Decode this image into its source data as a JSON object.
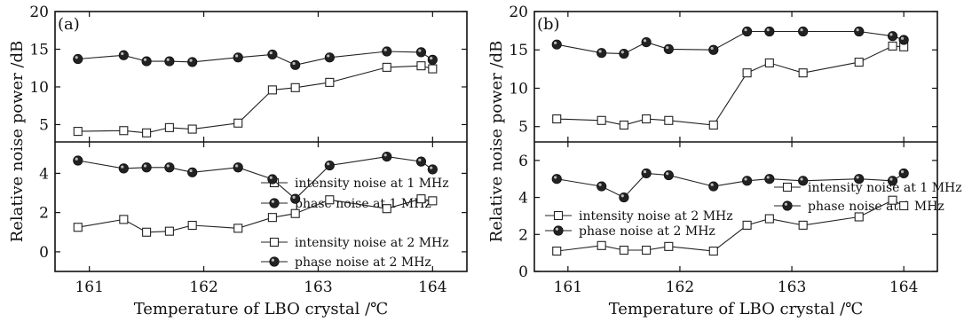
{
  "chart_data": [
    {
      "type": "line",
      "panel_label": "(a)",
      "xlabel": "Temperature of LBO crystal /℃",
      "ylabel": "Relative noise power /dB",
      "xlim": [
        160.7,
        164.3
      ],
      "xticks": [
        161,
        162,
        163,
        164
      ],
      "subplots": [
        {
          "position": "top",
          "ylim": [
            2.7,
            20
          ],
          "yticks": [
            5,
            10,
            15,
            20
          ],
          "legend_location": "center-right",
          "series": [
            {
              "name": "intensity noise at 1 MHz",
              "marker": "open-square",
              "x": [
                160.9,
                161.3,
                161.5,
                161.7,
                161.9,
                162.3,
                162.6,
                162.8,
                163.1,
                163.6,
                163.9,
                164.0
              ],
              "y": [
                4.1,
                4.2,
                3.9,
                4.6,
                4.4,
                5.2,
                9.6,
                9.9,
                10.6,
                12.6,
                12.8,
                12.4
              ]
            },
            {
              "name": "phase noise at 1 MHz",
              "marker": "filled-circle",
              "x": [
                160.9,
                161.3,
                161.5,
                161.7,
                161.9,
                162.3,
                162.6,
                162.8,
                163.1,
                163.6,
                163.9,
                164.0
              ],
              "y": [
                13.7,
                14.2,
                13.4,
                13.4,
                13.3,
                13.9,
                14.3,
                12.9,
                13.9,
                14.7,
                14.6,
                13.6
              ]
            }
          ]
        },
        {
          "position": "bottom",
          "ylim": [
            -1,
            5.6
          ],
          "yticks": [
            0,
            2,
            4
          ],
          "legend_location": "bottom-right",
          "series": [
            {
              "name": "intensity noise at 2 MHz",
              "marker": "open-square",
              "x": [
                160.9,
                161.3,
                161.5,
                161.7,
                161.9,
                162.3,
                162.6,
                162.8,
                163.1,
                163.6,
                163.9,
                164.0
              ],
              "y": [
                1.25,
                1.65,
                1.0,
                1.05,
                1.35,
                1.2,
                1.75,
                1.95,
                2.65,
                2.2,
                2.7,
                2.6
              ]
            },
            {
              "name": "phase noise at 2 MHz",
              "marker": "filled-circle",
              "x": [
                160.9,
                161.3,
                161.5,
                161.7,
                161.9,
                162.3,
                162.6,
                162.8,
                163.1,
                163.6,
                163.9,
                164.0
              ],
              "y": [
                4.65,
                4.25,
                4.3,
                4.3,
                4.05,
                4.3,
                3.7,
                2.7,
                4.4,
                4.85,
                4.6,
                4.2
              ]
            }
          ]
        }
      ]
    },
    {
      "type": "line",
      "panel_label": "(b)",
      "xlabel": "Temperature of LBO crystal /℃",
      "ylabel": "Relative noise power /dB",
      "xlim": [
        160.7,
        164.3
      ],
      "xticks": [
        161,
        162,
        163,
        164
      ],
      "subplots": [
        {
          "position": "top",
          "ylim": [
            3,
            20
          ],
          "yticks": [
            5,
            10,
            15,
            20
          ],
          "legend_location": "center-right",
          "series": [
            {
              "name": "intensity noise at 1 MHz",
              "marker": "open-square",
              "x": [
                160.9,
                161.3,
                161.5,
                161.7,
                161.9,
                162.3,
                162.6,
                162.8,
                163.1,
                163.6,
                163.9,
                164.0
              ],
              "y": [
                6.0,
                5.8,
                5.2,
                6.0,
                5.8,
                5.2,
                12.0,
                13.3,
                12.0,
                13.4,
                15.5,
                15.4
              ]
            },
            {
              "name": "phase noise at 1 MHz",
              "marker": "filled-circle",
              "x": [
                160.9,
                161.3,
                161.5,
                161.7,
                161.9,
                162.3,
                162.6,
                162.8,
                163.1,
                163.6,
                163.9,
                164.0
              ],
              "y": [
                15.7,
                14.6,
                14.5,
                16.0,
                15.1,
                15.0,
                17.4,
                17.4,
                17.4,
                17.4,
                16.8,
                16.3
              ]
            }
          ]
        },
        {
          "position": "bottom",
          "ylim": [
            0,
            7
          ],
          "yticks": [
            0,
            2,
            4,
            6
          ],
          "legend_location": "center-left",
          "series": [
            {
              "name": "intensity noise at 2 MHz",
              "marker": "open-square",
              "x": [
                160.9,
                161.3,
                161.5,
                161.7,
                161.9,
                162.3,
                162.6,
                162.8,
                163.1,
                163.6,
                163.9,
                164.0
              ],
              "y": [
                1.1,
                1.4,
                1.15,
                1.15,
                1.35,
                1.1,
                2.5,
                2.85,
                2.5,
                2.95,
                3.85,
                3.55
              ]
            },
            {
              "name": "phase noise at 2 MHz",
              "marker": "filled-circle",
              "x": [
                160.9,
                161.3,
                161.5,
                161.7,
                161.9,
                162.3,
                162.6,
                162.8,
                163.1,
                163.6,
                163.9,
                164.0
              ],
              "y": [
                5.0,
                4.6,
                4.0,
                5.3,
                5.2,
                4.6,
                4.9,
                5.0,
                4.9,
                5.0,
                4.9,
                5.3
              ]
            }
          ]
        }
      ]
    }
  ]
}
